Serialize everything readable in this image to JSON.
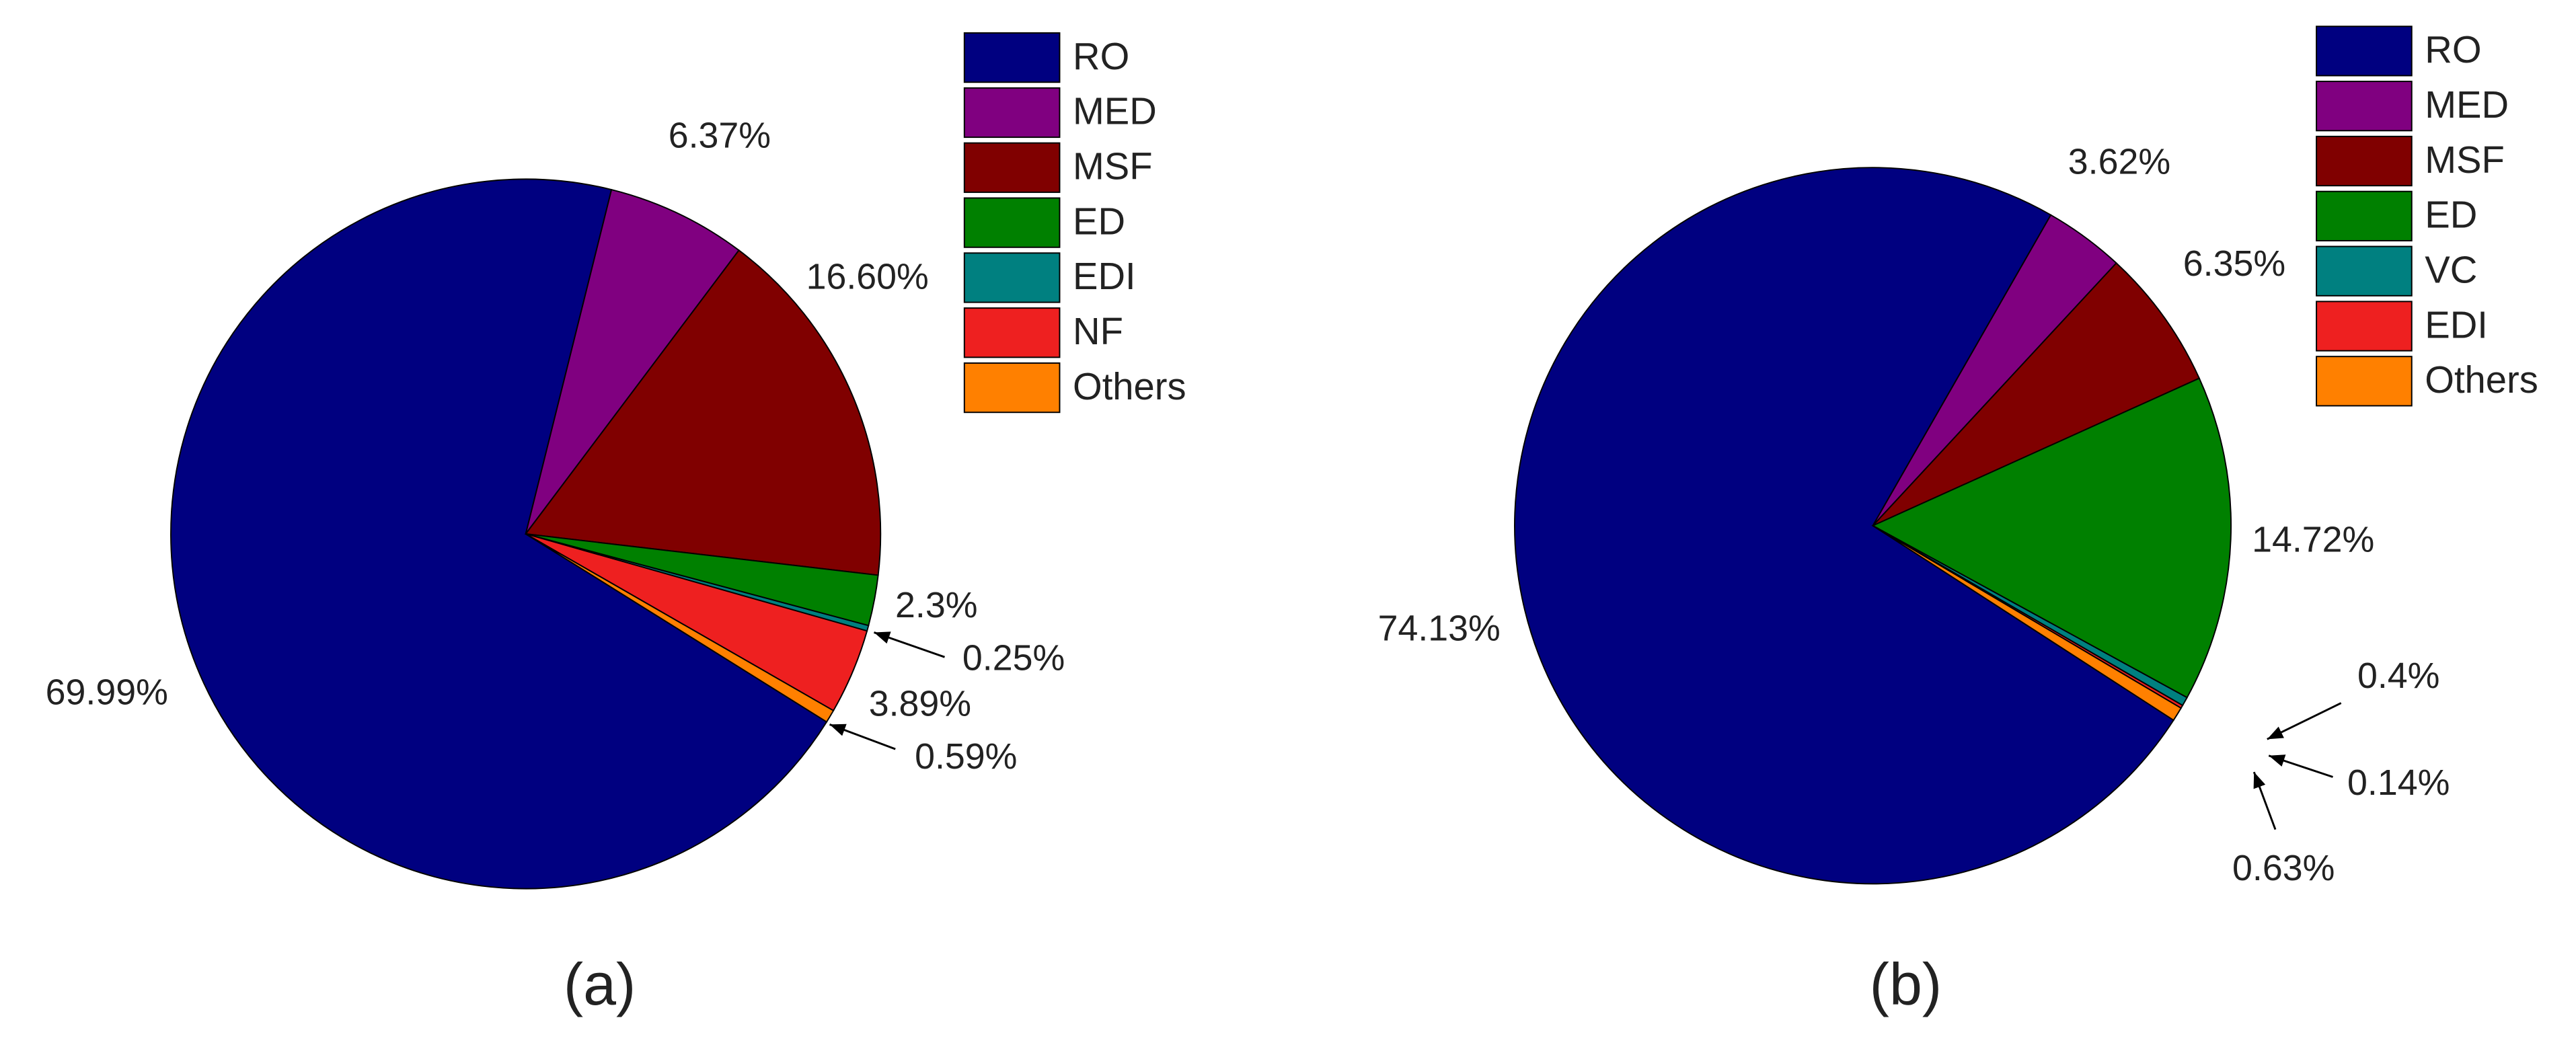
{
  "chart_data": [
    {
      "type": "pie",
      "caption": "(a)",
      "categories": [
        "RO",
        "MED",
        "MSF",
        "ED",
        "EDI",
        "NF",
        "Others"
      ],
      "values": [
        69.99,
        6.37,
        16.6,
        2.3,
        0.25,
        3.89,
        0.59
      ],
      "value_labels": [
        "69.99%",
        "6.37%",
        "16.60%",
        "2.3%",
        "0.25%",
        "3.89%",
        "0.59%"
      ],
      "colors": [
        "#000080",
        "#800080",
        "#800000",
        "#008000",
        "#008080",
        "#ee2020",
        "#ff8000"
      ]
    },
    {
      "type": "pie",
      "caption": "(b)",
      "categories": [
        "RO",
        "MED",
        "MSF",
        "ED",
        "VC",
        "EDI",
        "Others"
      ],
      "values": [
        74.13,
        3.62,
        6.35,
        14.72,
        0.4,
        0.14,
        0.63
      ],
      "value_labels": [
        "74.13%",
        "3.62%",
        "6.35%",
        "14.72%",
        "0.4%",
        "0.14%",
        "0.63%"
      ],
      "colors": [
        "#000080",
        "#800080",
        "#800000",
        "#008000",
        "#008080",
        "#ee2020",
        "#ff8000"
      ]
    }
  ]
}
